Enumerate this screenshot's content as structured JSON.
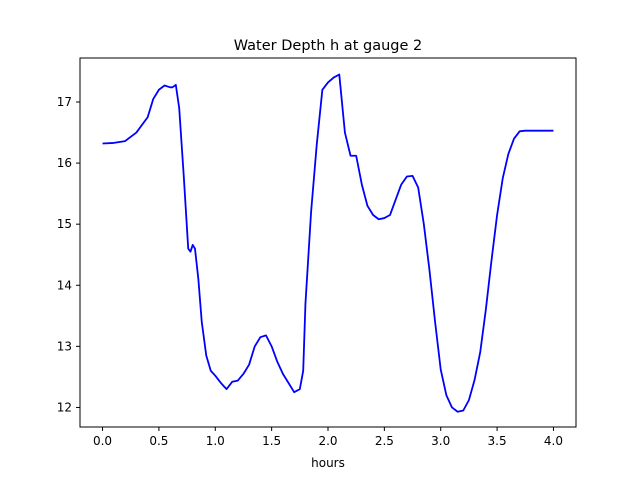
{
  "chart_data": {
    "type": "line",
    "title": "Water Depth h at gauge 2",
    "xlabel": "hours",
    "ylabel": "",
    "xlim": [
      -0.2,
      4.2
    ],
    "ylim": [
      11.68,
      17.72
    ],
    "xticks": [
      0.0,
      0.5,
      1.0,
      1.5,
      2.0,
      2.5,
      3.0,
      3.5,
      4.0
    ],
    "xtick_labels": [
      "0.0",
      "0.5",
      "1.0",
      "1.5",
      "2.0",
      "2.5",
      "3.0",
      "3.5",
      "4.0"
    ],
    "yticks": [
      12,
      13,
      14,
      15,
      16,
      17
    ],
    "ytick_labels": [
      "12",
      "13",
      "14",
      "15",
      "16",
      "17"
    ],
    "grid": false,
    "series": [
      {
        "color": "#0000ff",
        "x": [
          0.0,
          0.1,
          0.2,
          0.3,
          0.4,
          0.45,
          0.5,
          0.55,
          0.6,
          0.62,
          0.65,
          0.68,
          0.72,
          0.76,
          0.78,
          0.8,
          0.82,
          0.85,
          0.88,
          0.92,
          0.96,
          1.0,
          1.05,
          1.1,
          1.15,
          1.2,
          1.25,
          1.3,
          1.35,
          1.4,
          1.45,
          1.5,
          1.55,
          1.6,
          1.65,
          1.7,
          1.75,
          1.78,
          1.8,
          1.85,
          1.9,
          1.95,
          2.0,
          2.05,
          2.1,
          2.15,
          2.2,
          2.25,
          2.3,
          2.35,
          2.4,
          2.45,
          2.5,
          2.55,
          2.6,
          2.65,
          2.7,
          2.75,
          2.8,
          2.85,
          2.9,
          2.95,
          3.0,
          3.05,
          3.1,
          3.15,
          3.2,
          3.25,
          3.3,
          3.35,
          3.4,
          3.45,
          3.5,
          3.55,
          3.6,
          3.65,
          3.7,
          3.75,
          3.8,
          3.85,
          3.9,
          3.95,
          4.0
        ],
        "y": [
          16.32,
          16.33,
          16.36,
          16.5,
          16.75,
          17.05,
          17.2,
          17.27,
          17.24,
          17.24,
          17.28,
          16.9,
          15.8,
          14.6,
          14.55,
          14.66,
          14.6,
          14.1,
          13.4,
          12.85,
          12.6,
          12.52,
          12.4,
          12.3,
          12.42,
          12.44,
          12.55,
          12.7,
          13.0,
          13.15,
          13.18,
          13.0,
          12.75,
          12.55,
          12.4,
          12.25,
          12.3,
          12.6,
          13.7,
          15.2,
          16.3,
          17.2,
          17.32,
          17.4,
          17.45,
          16.5,
          16.12,
          16.12,
          15.65,
          15.3,
          15.15,
          15.08,
          15.1,
          15.15,
          15.4,
          15.65,
          15.78,
          15.79,
          15.6,
          15.0,
          14.25,
          13.4,
          12.62,
          12.2,
          12.0,
          11.93,
          11.95,
          12.12,
          12.45,
          12.9,
          13.6,
          14.4,
          15.15,
          15.75,
          16.15,
          16.4,
          16.52,
          16.53,
          16.53,
          16.53,
          16.53,
          16.53,
          16.53
        ]
      }
    ]
  }
}
